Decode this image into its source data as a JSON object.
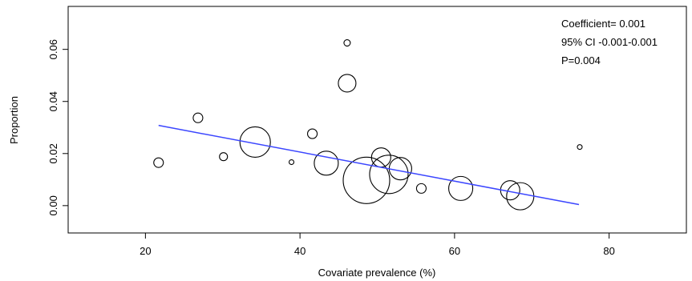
{
  "chart_data": {
    "type": "scatter",
    "title": "",
    "xlabel": "Covariate prevalence (%)",
    "ylabel": "Proportion",
    "xlim": [
      10,
      90
    ],
    "ylim": [
      -0.0105,
      0.0765
    ],
    "x_ticks": [
      20,
      40,
      60,
      80
    ],
    "x_tick_labels": [
      "20",
      "40",
      "60",
      "80"
    ],
    "y_ticks": [
      0.0,
      0.02,
      0.04,
      0.06
    ],
    "y_tick_labels": [
      "0.00",
      "0.02",
      "0.04",
      "0.06"
    ],
    "grid": false,
    "points": [
      {
        "x": 21.7,
        "y": 0.0165,
        "r": 6
      },
      {
        "x": 26.8,
        "y": 0.0337,
        "r": 6
      },
      {
        "x": 30.1,
        "y": 0.0188,
        "r": 5
      },
      {
        "x": 34.2,
        "y": 0.0244,
        "r": 19
      },
      {
        "x": 38.9,
        "y": 0.0167,
        "r": 3
      },
      {
        "x": 41.6,
        "y": 0.0276,
        "r": 6
      },
      {
        "x": 43.4,
        "y": 0.0163,
        "r": 15
      },
      {
        "x": 46.1,
        "y": 0.0625,
        "r": 4
      },
      {
        "x": 46.1,
        "y": 0.047,
        "r": 11
      },
      {
        "x": 48.6,
        "y": 0.0097,
        "r": 29
      },
      {
        "x": 50.5,
        "y": 0.0185,
        "r": 12
      },
      {
        "x": 51.5,
        "y": 0.012,
        "r": 24
      },
      {
        "x": 53.0,
        "y": 0.0142,
        "r": 14
      },
      {
        "x": 55.7,
        "y": 0.0066,
        "r": 6
      },
      {
        "x": 60.8,
        "y": 0.0066,
        "r": 15
      },
      {
        "x": 67.2,
        "y": 0.0059,
        "r": 12
      },
      {
        "x": 68.5,
        "y": 0.0036,
        "r": 17
      },
      {
        "x": 76.2,
        "y": 0.0225,
        "r": 3
      }
    ],
    "regression_line": {
      "x": [
        21.7,
        76.1
      ],
      "y": [
        0.0308,
        0.0004
      ],
      "color": "#3b46ff"
    },
    "annotations": [
      "Coefficient= 0.001",
      "95% CI -0.001-0.001",
      "P=0.004"
    ]
  }
}
